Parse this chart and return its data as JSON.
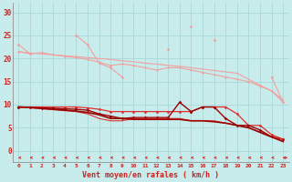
{
  "x": [
    0,
    1,
    2,
    3,
    4,
    5,
    6,
    7,
    8,
    9,
    10,
    11,
    12,
    13,
    14,
    15,
    16,
    17,
    18,
    19,
    20,
    21,
    22,
    23
  ],
  "line_pink1": [
    23,
    21,
    null,
    null,
    null,
    25,
    23,
    19,
    18,
    16,
    null,
    null,
    null,
    22,
    null,
    27,
    null,
    24,
    null,
    null,
    null,
    null,
    16,
    10.5
  ],
  "line_pink2": [
    21.5,
    21.2,
    21.0,
    20.8,
    20.6,
    20.4,
    20.2,
    20.0,
    19.8,
    19.5,
    19.3,
    19.0,
    18.8,
    18.5,
    18.3,
    18.0,
    17.7,
    17.4,
    17.1,
    16.8,
    15.5,
    14.2,
    13.0,
    11.0
  ],
  "line_pink3": [
    21.5,
    21.0,
    21.3,
    20.8,
    20.5,
    20.2,
    19.8,
    19.2,
    18.5,
    18.8,
    18.5,
    18.0,
    17.5,
    18.0,
    18.0,
    17.5,
    17.0,
    16.5,
    16.0,
    15.5,
    15.0,
    14.0,
    13.0,
    10.5
  ],
  "line_red1": [
    9.5,
    9.5,
    9.5,
    9.5,
    9.5,
    9.5,
    9.3,
    9.0,
    8.5,
    8.5,
    8.5,
    8.5,
    8.5,
    8.5,
    8.5,
    8.5,
    9.5,
    9.5,
    9.5,
    8.0,
    5.5,
    5.5,
    3.5,
    2.5
  ],
  "line_red2": [
    9.5,
    9.4,
    9.3,
    9.2,
    9.1,
    9.0,
    8.8,
    8.0,
    7.5,
    7.0,
    7.2,
    7.2,
    7.2,
    7.2,
    10.5,
    8.5,
    9.5,
    9.5,
    7.0,
    5.5,
    5.5,
    4.5,
    3.0,
    2.5
  ],
  "line_red3": [
    9.5,
    9.3,
    9.1,
    8.9,
    8.7,
    8.5,
    8.0,
    7.0,
    6.5,
    6.5,
    7.0,
    7.0,
    7.0,
    7.0,
    7.0,
    6.5,
    6.5,
    6.5,
    6.0,
    5.5,
    5.0,
    4.0,
    3.0,
    2.5
  ],
  "line_dark1": [
    9.5,
    9.4,
    9.2,
    9.0,
    8.8,
    8.6,
    8.3,
    7.8,
    7.0,
    7.0,
    6.8,
    6.8,
    6.8,
    6.8,
    6.8,
    6.5,
    6.5,
    6.3,
    6.0,
    5.5,
    5.0,
    4.0,
    3.0,
    2.0
  ],
  "bg_color": "#c8ecec",
  "grid_color": "#a8d8d8",
  "light_pink": "#f0a0a0",
  "medium_red": "#e03030",
  "dark_red": "#990000",
  "arrow_color": "#dd2222",
  "tick_color": "#cc2222",
  "xlabel": "Vent moyen/en rafales ( km/h )",
  "yticks": [
    0,
    5,
    10,
    15,
    20,
    25,
    30
  ],
  "ylim": [
    -2.5,
    32
  ],
  "xlim": [
    -0.5,
    23.5
  ]
}
